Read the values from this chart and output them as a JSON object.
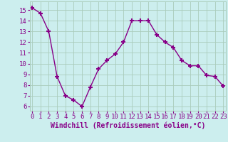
{
  "x": [
    0,
    1,
    2,
    3,
    4,
    5,
    6,
    7,
    8,
    9,
    10,
    11,
    12,
    13,
    14,
    15,
    16,
    17,
    18,
    19,
    20,
    21,
    22,
    23
  ],
  "y": [
    15.2,
    14.7,
    13.0,
    8.8,
    7.0,
    6.6,
    6.0,
    7.8,
    9.5,
    10.3,
    10.9,
    12.0,
    14.0,
    14.0,
    14.0,
    12.7,
    12.0,
    11.5,
    10.3,
    9.8,
    9.8,
    8.9,
    8.8,
    7.9
  ],
  "line_color": "#880088",
  "marker": "+",
  "marker_size": 5,
  "marker_lw": 1.5,
  "line_width": 1.0,
  "bg_color": "#cceeee",
  "grid_color": "#aaccbb",
  "xlabel": "Windchill (Refroidissement éolien,°C)",
  "xlabel_color": "#880088",
  "xlabel_fontsize": 7,
  "tick_color": "#880088",
  "tick_fontsize": 6.5,
  "ytick_values": [
    6,
    7,
    8,
    9,
    10,
    11,
    12,
    13,
    14,
    15
  ],
  "xtick_values": [
    0,
    1,
    2,
    3,
    4,
    5,
    6,
    7,
    8,
    9,
    10,
    11,
    12,
    13,
    14,
    15,
    16,
    17,
    18,
    19,
    20,
    21,
    22,
    23
  ],
  "ylim": [
    5.6,
    15.8
  ],
  "xlim": [
    -0.3,
    23.3
  ]
}
